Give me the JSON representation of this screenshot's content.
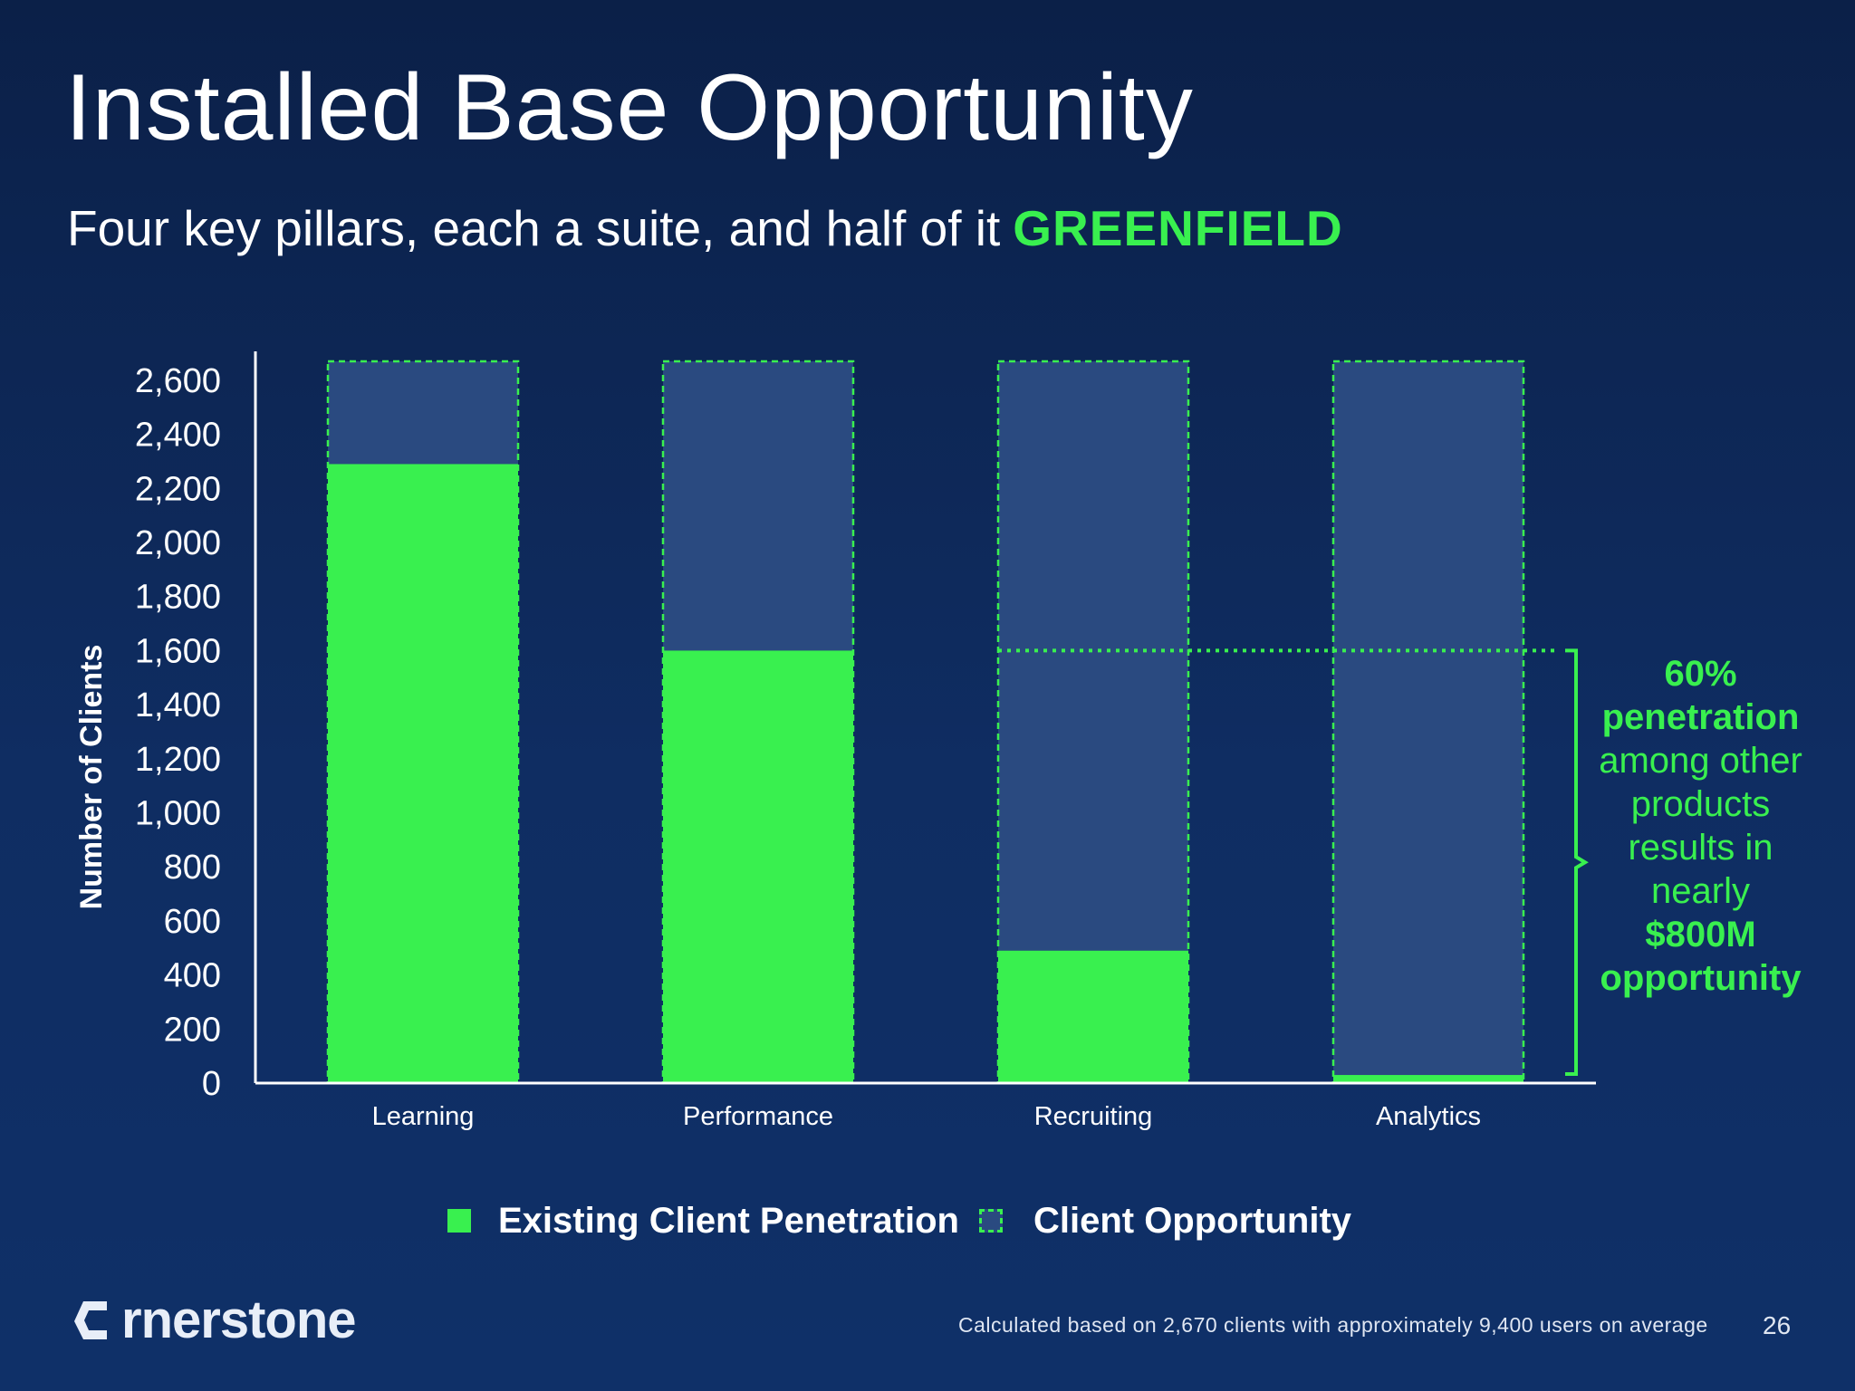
{
  "title": "Installed Base Opportunity",
  "subtitle": {
    "text": "Four key pillars, each a suite, and half of it",
    "highlight": "GREENFIELD"
  },
  "chart_data": {
    "type": "bar",
    "stacked": true,
    "categories": [
      "Learning",
      "Performance",
      "Recruiting",
      "Analytics"
    ],
    "series": [
      {
        "name": "Existing Client Penetration",
        "values": [
          2290,
          1600,
          490,
          30
        ],
        "color": "#39f04f"
      },
      {
        "name": "Client Opportunity",
        "values": [
          380,
          1070,
          2180,
          2640
        ],
        "color": "#2a4a80"
      }
    ],
    "total_clients": 2670,
    "ylabel": "Number of Clients",
    "xlabel": "",
    "ylim": [
      0,
      2700
    ],
    "yticks": [
      0,
      200,
      400,
      600,
      800,
      1000,
      1200,
      1400,
      1600,
      1800,
      2000,
      2200,
      2400,
      2600
    ],
    "ytick_labels": [
      "0",
      "200",
      "400",
      "600",
      "800",
      "1,000",
      "1,200",
      "1,400",
      "1,600",
      "1,800",
      "2,000",
      "2,200",
      "2,400",
      "2,600"
    ],
    "reference_line": {
      "value": 1600,
      "style": "dotted"
    },
    "annotation": {
      "line1": "60%",
      "line2": "penetration",
      "line3": "among other products results in nearly",
      "line4": "$800M",
      "line5": "opportunity"
    },
    "legend_position": "bottom"
  },
  "legend": {
    "existing": "Existing Client Penetration",
    "opportunity": "Client Opportunity"
  },
  "brand": {
    "logo_text": "rnerstone",
    "accent_color": "#39f04f"
  },
  "footnote": "Calculated based  on 2,670  clients with approximately 9,400  users on average",
  "page_number": "26"
}
